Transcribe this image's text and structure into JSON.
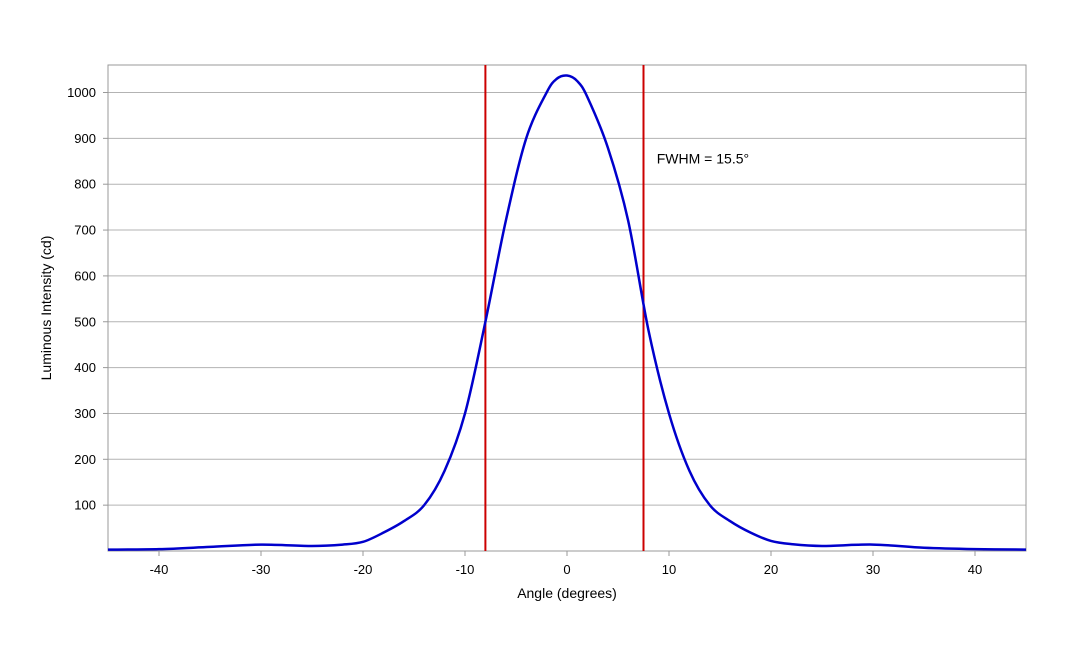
{
  "chart_data": {
    "type": "line",
    "title": "",
    "xlabel": "Angle (degrees)",
    "ylabel": "Luminous Intensity (cd)",
    "xlim": [
      -45,
      45
    ],
    "ylim": [
      0,
      1060
    ],
    "x_ticks": [
      -40,
      -30,
      -20,
      -10,
      0,
      10,
      20,
      30,
      40
    ],
    "y_ticks": [
      100,
      200,
      300,
      400,
      500,
      600,
      700,
      800,
      900,
      1000
    ],
    "grid": "horizontal",
    "legend": "none",
    "series": [
      {
        "color": "#0000cc",
        "x": [
          -45,
          -40,
          -35,
          -30,
          -25,
          -22,
          -20,
          -18,
          -16,
          -14,
          -12,
          -10,
          -8,
          -6,
          -4,
          -2,
          -1,
          0,
          1,
          2,
          4,
          6,
          8,
          10,
          12,
          14,
          16,
          18,
          20,
          22,
          25,
          30,
          35,
          40,
          45
        ],
        "y": [
          3,
          4,
          9,
          14,
          11,
          14,
          20,
          40,
          65,
          100,
          175,
          300,
          500,
          720,
          900,
          1000,
          1030,
          1037,
          1025,
          990,
          880,
          720,
          480,
          300,
          175,
          100,
          65,
          40,
          22,
          15,
          11,
          14,
          7,
          4,
          3
        ]
      }
    ],
    "markers": [
      {
        "x": -8,
        "color": "#cc0000"
      },
      {
        "x": 7.5,
        "color": "#cc0000"
      }
    ],
    "annotations": [
      {
        "text": "FWHM = 15.5°",
        "x": 8.8,
        "y": 845
      }
    ]
  }
}
